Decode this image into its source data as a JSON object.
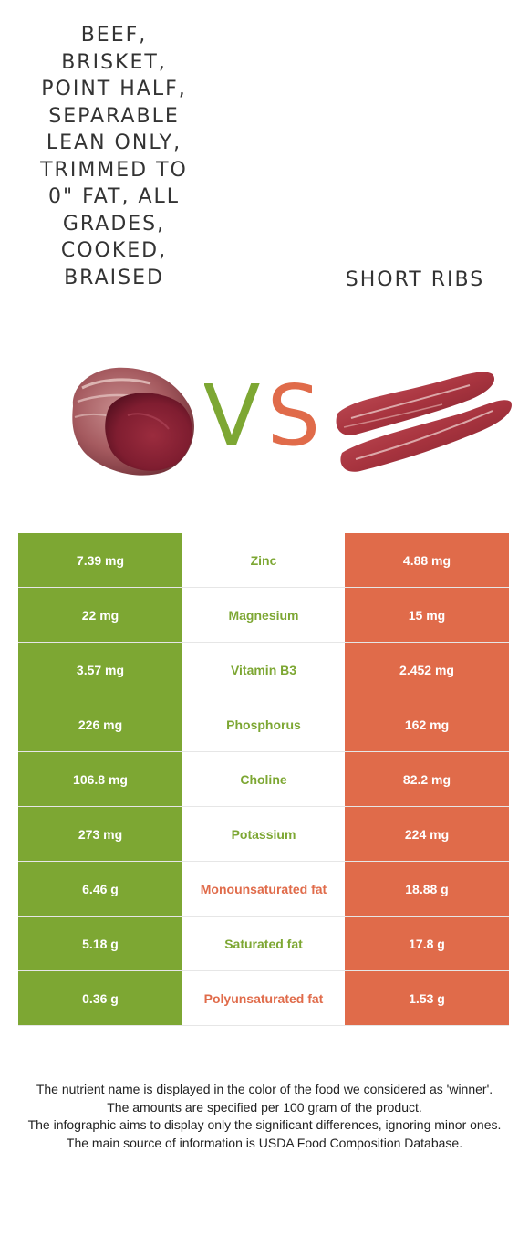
{
  "food_left": {
    "name": "Beef, brisket, point half, separable lean only, trimmed to 0\" fat, all grades, cooked, braised",
    "color": "#7da733",
    "image_icon": "beef-roast-image"
  },
  "food_right": {
    "name": "Short ribs",
    "color": "#e06b4a",
    "image_icon": "short-ribs-image"
  },
  "vs": {
    "v": "V",
    "s": "S"
  },
  "rows": [
    {
      "left": "7.39 mg",
      "nutrient": "Zinc",
      "right": "4.88 mg",
      "winner": "left"
    },
    {
      "left": "22 mg",
      "nutrient": "Magnesium",
      "right": "15 mg",
      "winner": "left"
    },
    {
      "left": "3.57 mg",
      "nutrient": "Vitamin B3",
      "right": "2.452 mg",
      "winner": "left"
    },
    {
      "left": "226 mg",
      "nutrient": "Phosphorus",
      "right": "162 mg",
      "winner": "left"
    },
    {
      "left": "106.8 mg",
      "nutrient": "Choline",
      "right": "82.2 mg",
      "winner": "left"
    },
    {
      "left": "273 mg",
      "nutrient": "Potassium",
      "right": "224 mg",
      "winner": "left"
    },
    {
      "left": "6.46 g",
      "nutrient": "Monounsaturated fat",
      "right": "18.88 g",
      "winner": "right"
    },
    {
      "left": "5.18 g",
      "nutrient": "Saturated fat",
      "right": "17.8 g",
      "winner": "left"
    },
    {
      "left": "0.36 g",
      "nutrient": "Polyunsaturated fat",
      "right": "1.53 g",
      "winner": "right"
    }
  ],
  "footnote": {
    "line1": "The nutrient name is displayed in the color of the food we considered as 'winner'.",
    "line2": "The amounts are specified per 100 gram of the product.",
    "line3": "The infographic aims to display only the significant differences, ignoring minor ones.",
    "line4": "The main source of information is USDA Food Composition Database."
  }
}
